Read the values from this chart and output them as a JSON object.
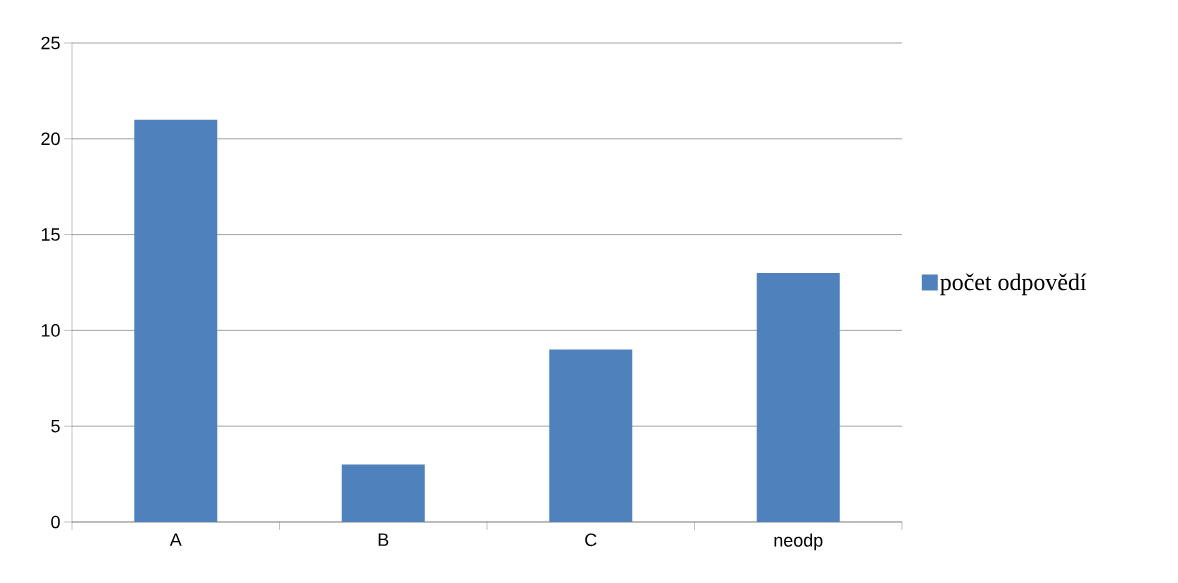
{
  "chart_data": {
    "type": "bar",
    "categories": [
      "A",
      "B",
      "C",
      "neodp"
    ],
    "series": [
      {
        "name": "počet odpovědí",
        "color": "#4f81bd",
        "values": [
          21,
          3,
          9,
          13
        ]
      }
    ],
    "ylim": [
      0,
      25
    ],
    "yticks": [
      0,
      5,
      10,
      15,
      20,
      25
    ],
    "grid": "y",
    "legend": "right"
  }
}
